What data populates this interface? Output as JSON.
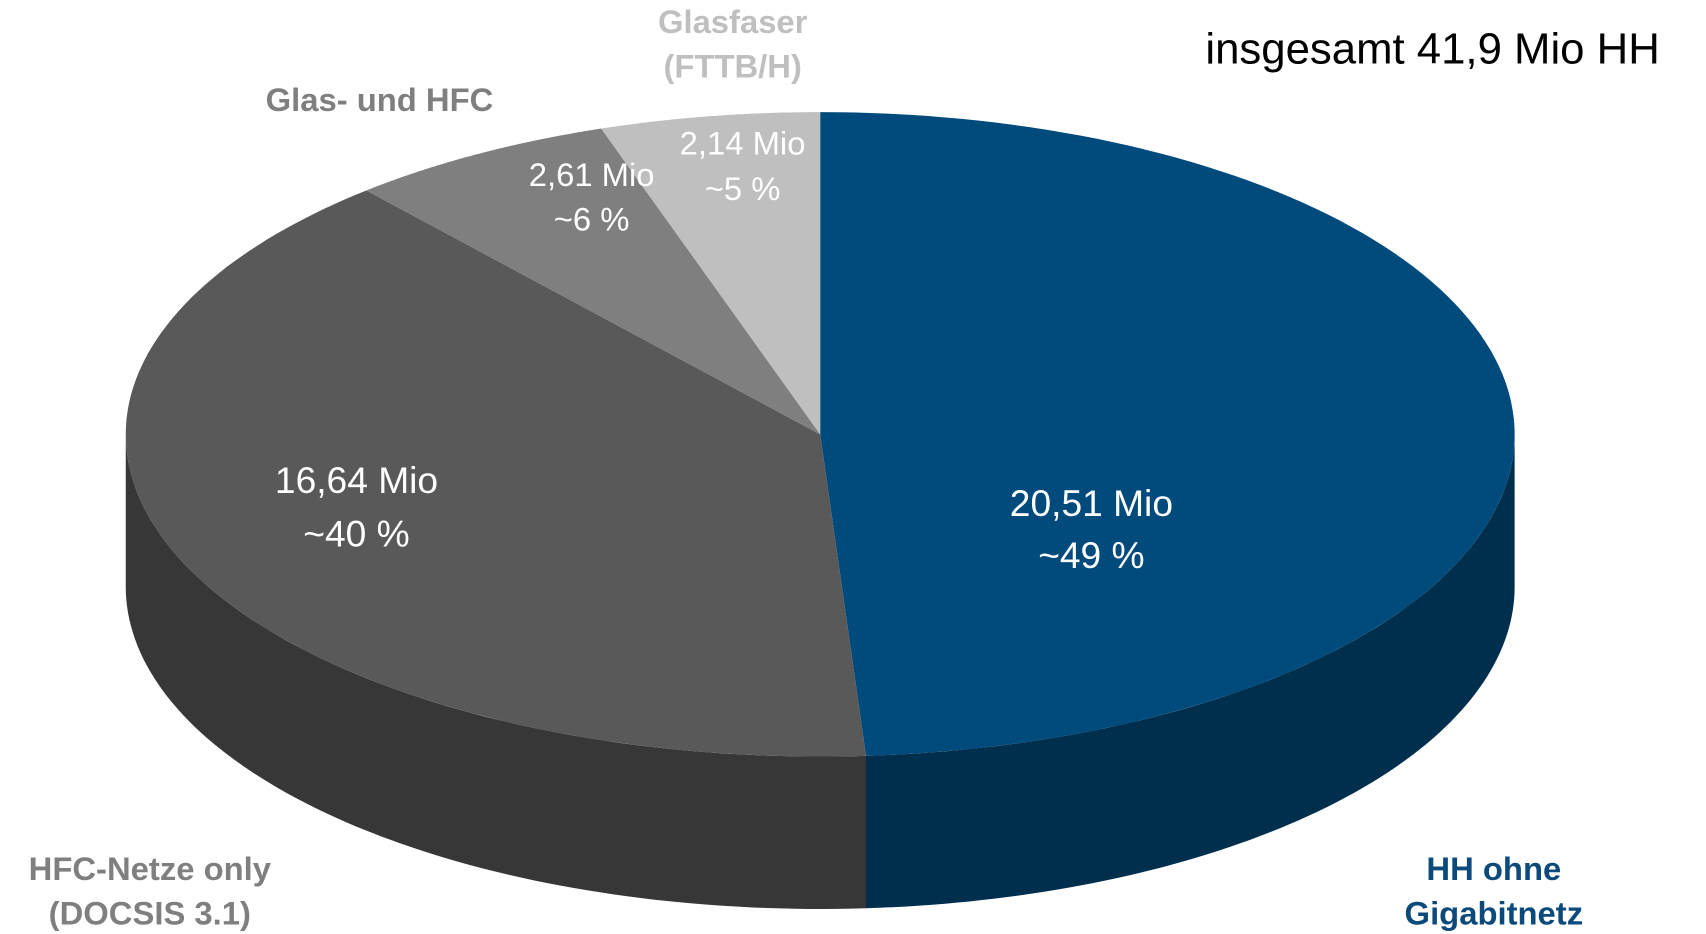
{
  "chart_data": {
    "type": "pie",
    "annotation": "insgesamt 41,9 Mio HH",
    "categories": [
      "HH ohne Gigabitnetz",
      "HFC-Netze only (DOCSIS 3.1)",
      "Glas- und HFC",
      "Glasfaser (FTTB/H)"
    ],
    "values": [
      20.51,
      16.64,
      2.61,
      2.14
    ],
    "value_labels": [
      "20,51 Mio",
      "16,64 Mio",
      "2,61 Mio",
      "2,14 Mio"
    ],
    "percent_labels": [
      "~49 %",
      "~40 %",
      "~6 %",
      "~5 %"
    ],
    "colors": [
      "#004a7c",
      "#595959",
      "#7f7f7f",
      "#bfbfbf"
    ],
    "label_colors": [
      "#0d4a7c",
      "#7f7f7f",
      "#7f7f7f",
      "#bfbfbf"
    ]
  }
}
